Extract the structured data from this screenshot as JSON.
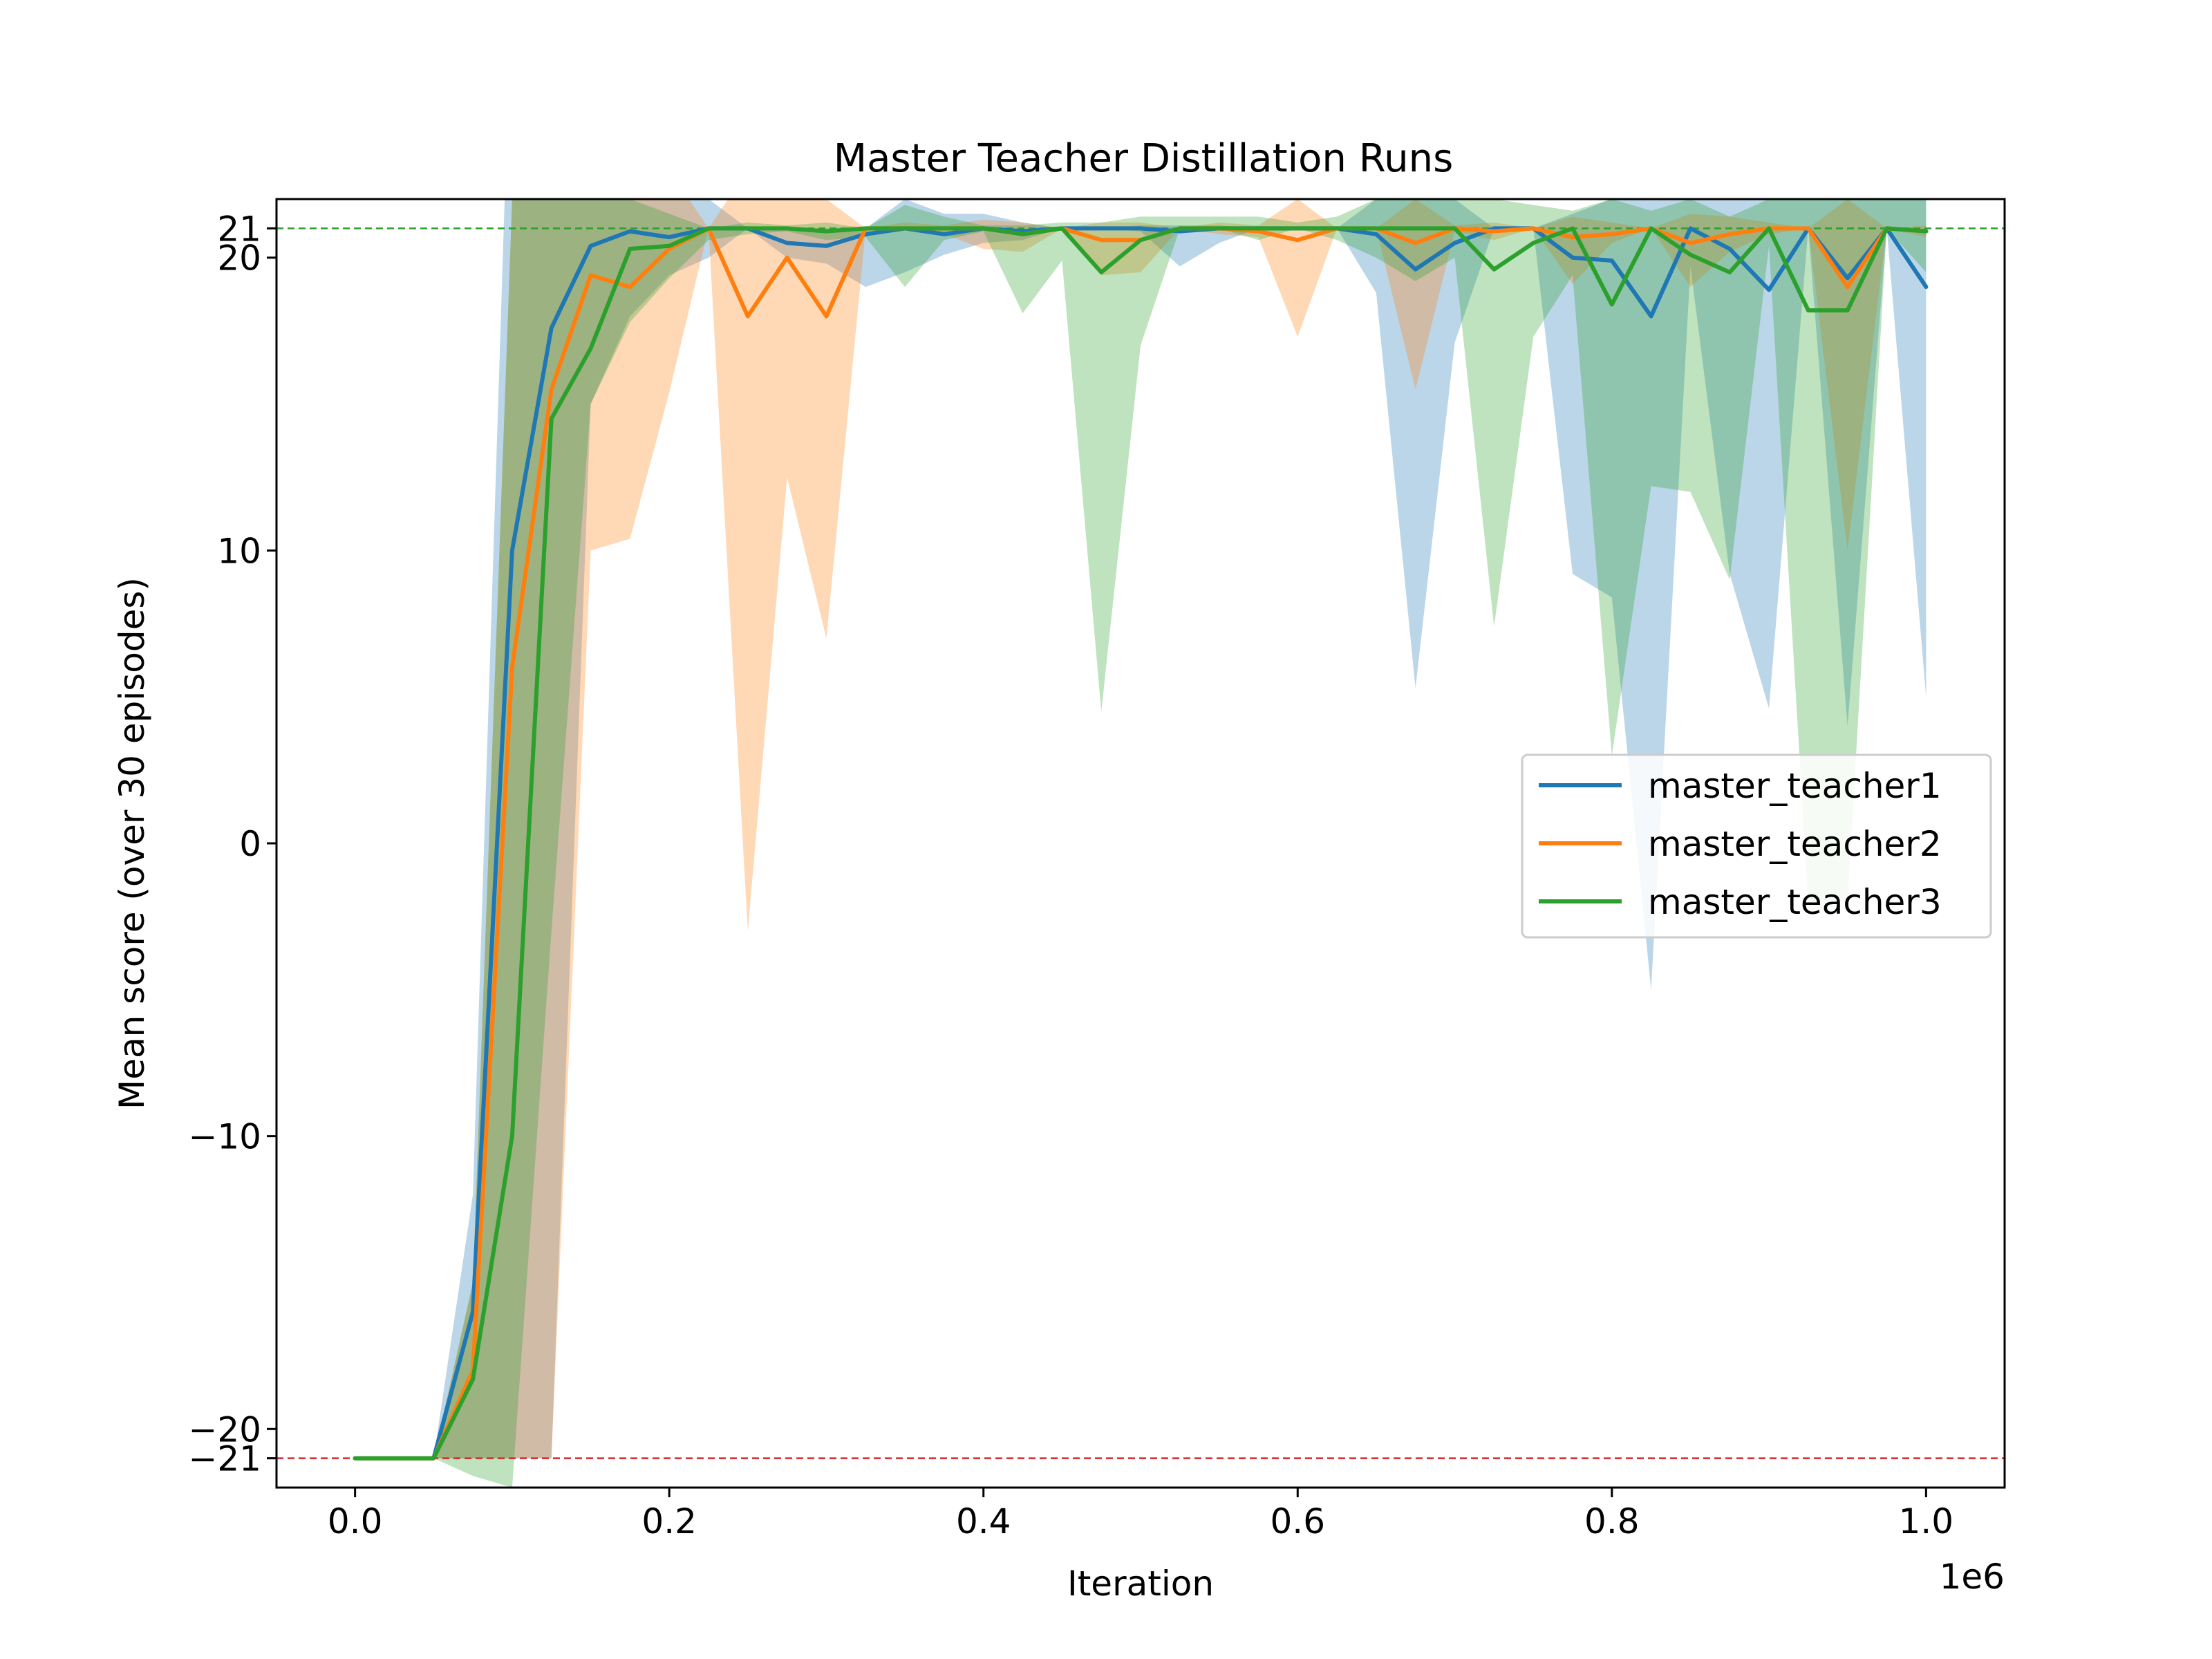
{
  "chart_data": {
    "type": "line",
    "title": "Master Teacher Distillation Runs",
    "xlabel": "Iteration",
    "ylabel": "Mean score (over 30 episodes)",
    "x_offset_label": "1e6",
    "xlim": [
      -0.05,
      1.05
    ],
    "ylim": [
      -22,
      22
    ],
    "x_ticks": [
      0.0,
      0.2,
      0.4,
      0.6,
      0.8,
      1.0
    ],
    "x_tick_labels": [
      "0.0",
      "0.2",
      "0.4",
      "0.6",
      "0.8",
      "1.0"
    ],
    "y_ticks": [
      21,
      20,
      10,
      0,
      -10,
      -20,
      -21
    ],
    "y_tick_labels": [
      "21",
      "20",
      "10",
      "0",
      "−10",
      "−20",
      "−21"
    ],
    "reference_lines": [
      {
        "y": 21,
        "color": "#2ca02c",
        "style": "dashed"
      },
      {
        "y": -21,
        "color": "#d62728",
        "style": "dashed"
      }
    ],
    "legend_position": "center-right",
    "grid": false,
    "x": [
      0.0,
      0.025,
      0.05,
      0.075,
      0.1,
      0.125,
      0.15,
      0.175,
      0.2,
      0.225,
      0.25,
      0.275,
      0.3,
      0.325,
      0.35,
      0.375,
      0.4,
      0.425,
      0.45,
      0.475,
      0.5,
      0.525,
      0.55,
      0.575,
      0.6,
      0.625,
      0.65,
      0.675,
      0.7,
      0.725,
      0.75,
      0.775,
      0.8,
      0.825,
      0.85,
      0.875,
      0.9,
      0.925,
      0.95,
      0.975,
      1.0
    ],
    "series": [
      {
        "name": "master_teacher1",
        "color": "#1f77b4",
        "values": [
          -21,
          -21,
          -21,
          -16,
          10,
          17.6,
          20.4,
          20.9,
          20.7,
          21,
          21,
          20.5,
          20.4,
          20.8,
          21,
          20.8,
          21,
          20.9,
          21,
          21,
          21,
          20.9,
          21,
          21,
          21,
          21,
          20.8,
          19.6,
          20.5,
          21,
          21,
          20,
          19.9,
          18,
          21,
          20.3,
          18.9,
          21,
          19.3,
          21,
          19
        ],
        "upper": [
          -21,
          -21,
          -21,
          -12,
          30,
          30,
          24,
          23,
          22,
          22,
          21,
          21,
          21,
          21,
          22,
          21.5,
          21.5,
          21.2,
          21,
          21,
          21.1,
          21.1,
          21.1,
          21,
          21,
          21,
          22,
          22,
          22,
          21,
          21,
          21.5,
          22,
          22,
          22,
          22,
          22,
          22,
          22,
          22,
          22
        ],
        "lower": [
          -21,
          -21,
          -21,
          -21,
          -21,
          -21,
          15,
          18,
          19.4,
          20,
          21,
          20,
          19.8,
          19,
          19.5,
          20.1,
          20.5,
          20.6,
          21,
          21,
          20.9,
          19.7,
          20.5,
          21,
          21,
          21,
          18.8,
          5.3,
          17.1,
          21,
          21,
          9.2,
          8.4,
          -5,
          19.7,
          9.2,
          4.6,
          21,
          4,
          21,
          5
        ]
      },
      {
        "name": "master_teacher2",
        "color": "#ff7f0e",
        "values": [
          -21,
          -21,
          -21,
          -18,
          6,
          15.5,
          19.4,
          19,
          20.3,
          21,
          18,
          20,
          18,
          21,
          21,
          21,
          21,
          20.8,
          21,
          20.6,
          20.6,
          21,
          21,
          20.9,
          20.6,
          21,
          21,
          20.5,
          21,
          20.9,
          21,
          20.7,
          20.8,
          21,
          20.5,
          20.8,
          21,
          21,
          19,
          21,
          20.9
        ],
        "upper": [
          -21,
          -21,
          -21,
          -15,
          22,
          22,
          23,
          23,
          23,
          21,
          23,
          23,
          22,
          21,
          21.2,
          21.1,
          21.3,
          21.2,
          21,
          21.2,
          21.2,
          21,
          21.2,
          21.1,
          22,
          21,
          21,
          22,
          21.1,
          21.2,
          21,
          21.4,
          21.2,
          21,
          21.5,
          21.4,
          21.2,
          21,
          22,
          21,
          21.1
        ],
        "lower": [
          -21,
          -21,
          -21,
          -21,
          -21,
          -21,
          10,
          10.4,
          15.4,
          21,
          -3,
          12.5,
          7,
          21,
          21,
          20.8,
          20.3,
          20.2,
          21,
          19.4,
          19.5,
          21,
          20.8,
          20.7,
          17.3,
          21,
          21,
          15.5,
          20.9,
          20.6,
          21,
          19.1,
          20.5,
          21,
          19,
          20.2,
          20.8,
          21,
          10,
          21,
          20.7
        ]
      },
      {
        "name": "master_teacher3",
        "color": "#2ca02c",
        "values": [
          -21,
          -21,
          -21,
          -18.3,
          -10,
          14.5,
          16.9,
          20.3,
          20.4,
          21,
          21,
          21,
          20.9,
          21,
          21,
          21,
          21,
          20.8,
          21,
          19.5,
          20.6,
          21,
          21,
          21,
          21,
          21,
          21,
          21,
          21,
          19.6,
          20.5,
          21,
          18.4,
          21,
          20.1,
          19.5,
          21,
          18.2,
          18.2,
          21,
          20.9
        ],
        "upper": [
          -21,
          -21,
          -21,
          -15,
          22,
          22,
          22,
          22,
          21.5,
          21,
          21.2,
          21.1,
          21.2,
          21,
          21.8,
          21.4,
          21.1,
          21.1,
          21.2,
          21.2,
          21.4,
          21.4,
          21.4,
          21.4,
          21.2,
          21.4,
          22,
          22,
          22,
          22,
          21.8,
          21.6,
          22,
          21.6,
          22,
          21.4,
          22,
          22,
          22,
          22,
          22
        ],
        "lower": [
          -21,
          -21,
          -21,
          -21.6,
          -22,
          -3,
          15,
          17.8,
          19.3,
          20.6,
          20.8,
          20.9,
          20.6,
          20.7,
          19,
          20.6,
          20.9,
          18.1,
          19.9,
          4.5,
          17,
          21,
          21,
          20.6,
          21,
          20.6,
          20,
          19.2,
          20,
          7.4,
          17.3,
          19.4,
          3,
          12.2,
          12,
          9,
          20.4,
          -2,
          -2,
          21,
          19.5
        ]
      }
    ]
  }
}
